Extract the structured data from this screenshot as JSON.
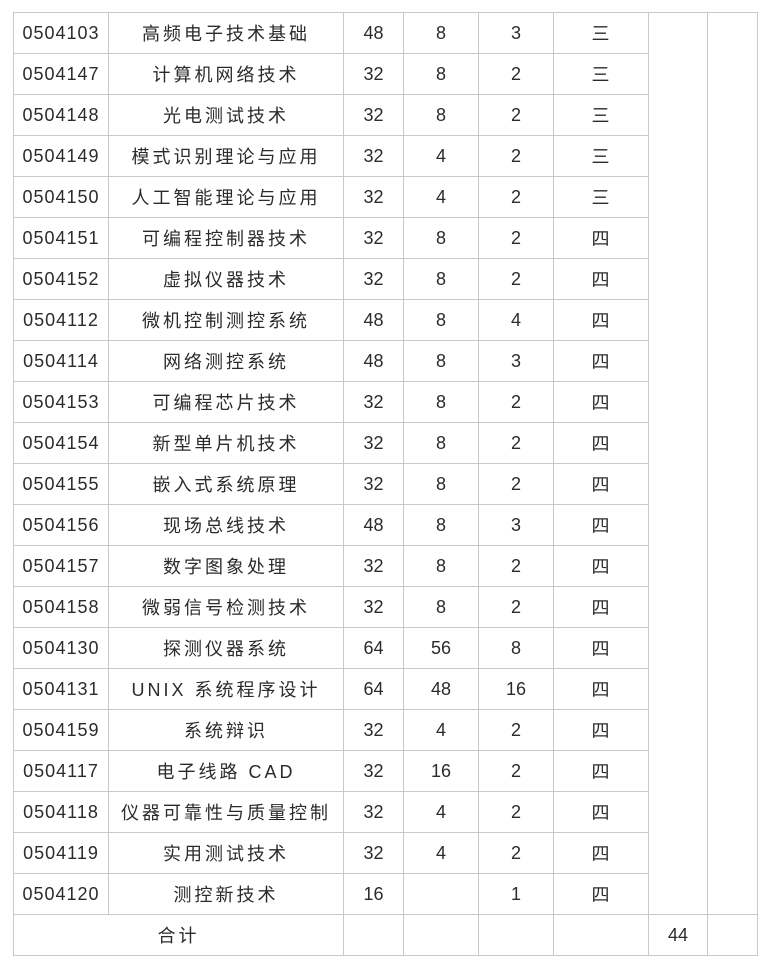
{
  "page": {
    "background_color": "#ffffff",
    "border_color": "#c9c9c9",
    "text_color": "#2b2b2b"
  },
  "table": {
    "rows": [
      {
        "code": "0504103",
        "name": "高频电子技术基础",
        "hours": "48",
        "practice": "8",
        "credits": "3",
        "semester": "三"
      },
      {
        "code": "0504147",
        "name": "计算机网络技术",
        "hours": "32",
        "practice": "8",
        "credits": "2",
        "semester": "三"
      },
      {
        "code": "0504148",
        "name": "光电测试技术",
        "hours": "32",
        "practice": "8",
        "credits": "2",
        "semester": "三"
      },
      {
        "code": "0504149",
        "name": "模式识别理论与应用",
        "hours": "32",
        "practice": "4",
        "credits": "2",
        "semester": "三"
      },
      {
        "code": "0504150",
        "name": "人工智能理论与应用",
        "hours": "32",
        "practice": "4",
        "credits": "2",
        "semester": "三"
      },
      {
        "code": "0504151",
        "name": "可编程控制器技术",
        "hours": "32",
        "practice": "8",
        "credits": "2",
        "semester": "四"
      },
      {
        "code": "0504152",
        "name": "虚拟仪器技术",
        "hours": "32",
        "practice": "8",
        "credits": "2",
        "semester": "四"
      },
      {
        "code": "0504112",
        "name": "微机控制测控系统",
        "hours": "48",
        "practice": "8",
        "credits": "4",
        "semester": "四"
      },
      {
        "code": "0504114",
        "name": "网络测控系统",
        "hours": "48",
        "practice": "8",
        "credits": "3",
        "semester": "四"
      },
      {
        "code": "0504153",
        "name": "可编程芯片技术",
        "hours": "32",
        "practice": "8",
        "credits": "2",
        "semester": "四"
      },
      {
        "code": "0504154",
        "name": "新型单片机技术",
        "hours": "32",
        "practice": "8",
        "credits": "2",
        "semester": "四"
      },
      {
        "code": "0504155",
        "name": "嵌入式系统原理",
        "hours": "32",
        "practice": "8",
        "credits": "2",
        "semester": "四"
      },
      {
        "code": "0504156",
        "name": "现场总线技术",
        "hours": "48",
        "practice": "8",
        "credits": "3",
        "semester": "四"
      },
      {
        "code": "0504157",
        "name": "数字图象处理",
        "hours": "32",
        "practice": "8",
        "credits": "2",
        "semester": "四"
      },
      {
        "code": "0504158",
        "name": "微弱信号检测技术",
        "hours": "32",
        "practice": "8",
        "credits": "2",
        "semester": "四"
      },
      {
        "code": "0504130",
        "name": "探测仪器系统",
        "hours": "64",
        "practice": "56",
        "credits": "8",
        "semester": "四"
      },
      {
        "code": "0504131",
        "name": "UNIX 系统程序设计",
        "hours": "64",
        "practice": "48",
        "credits": "16",
        "semester": "四"
      },
      {
        "code": "0504159",
        "name": "系统辩识",
        "hours": "32",
        "practice": "4",
        "credits": "2",
        "semester": "四"
      },
      {
        "code": "0504117",
        "name": "电子线路 CAD",
        "hours": "32",
        "practice": "16",
        "credits": "2",
        "semester": "四"
      },
      {
        "code": "0504118",
        "name": "仪器可靠性与质量控制",
        "hours": "32",
        "practice": "4",
        "credits": "2",
        "semester": "四"
      },
      {
        "code": "0504119",
        "name": "实用测试技术",
        "hours": "32",
        "practice": "4",
        "credits": "2",
        "semester": "四"
      },
      {
        "code": "0504120",
        "name": "测控新技术",
        "hours": "16",
        "practice": "",
        "credits": "1",
        "semester": "四"
      }
    ],
    "merged_right_1": "",
    "merged_right_2": "",
    "footer": {
      "label": "合计",
      "hours": "",
      "practice": "",
      "credits": "",
      "semester": "",
      "total": "44",
      "extra": ""
    }
  }
}
